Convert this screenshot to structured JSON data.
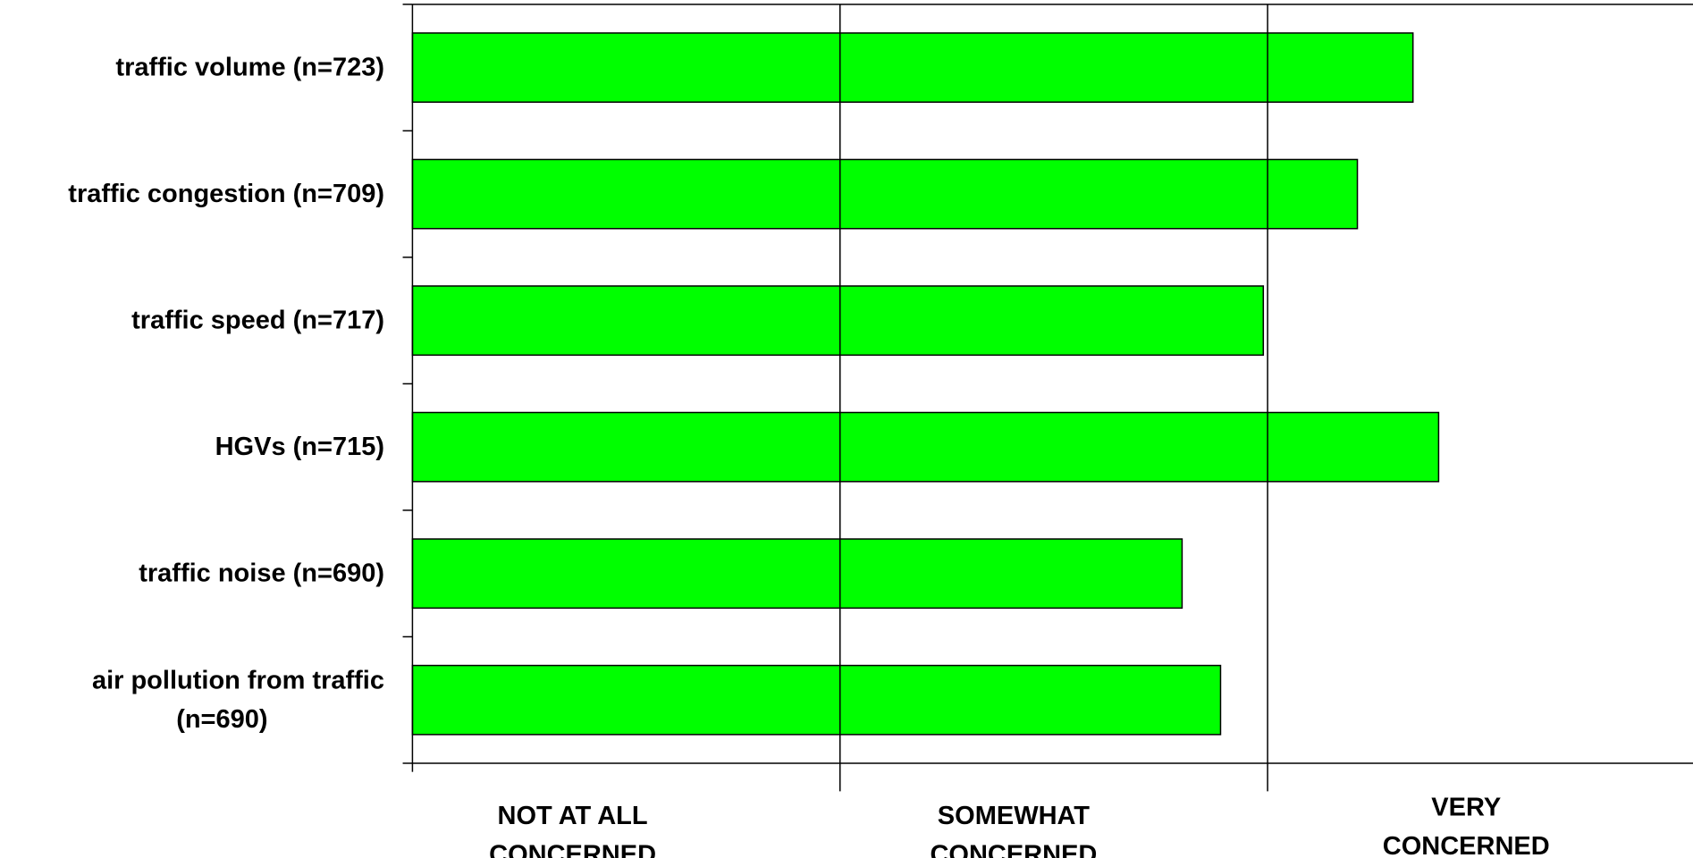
{
  "chart_data": {
    "type": "bar",
    "orientation": "horizontal",
    "categories": [
      "traffic volume (n=723)",
      "traffic congestion (n=709)",
      "traffic speed (n=717)",
      "HGVs (n=715)",
      "traffic noise (n=690)",
      "air pollution from traffic (n=690)"
    ],
    "category_lines": [
      [
        "traffic volume (n=723)"
      ],
      [
        "traffic congestion (n=709)"
      ],
      [
        "traffic speed (n=717)"
      ],
      [
        "HGVs (n=715)"
      ],
      [
        "traffic noise (n=690)"
      ],
      [
        "air pollution from traffic",
        "(n=690)"
      ]
    ],
    "values": [
      2.34,
      2.21,
      1.99,
      2.4,
      1.8,
      1.89
    ],
    "xlim": [
      0,
      4
    ],
    "x_tick_labels": [
      {
        "value": 0.5,
        "lines": [
          "NOT AT ALL",
          "CONCERNED"
        ]
      },
      {
        "value": 1.5,
        "lines": [
          "SOMEWHAT",
          "CONCERNED"
        ]
      },
      {
        "value": 2.5,
        "lines": [
          "VERY",
          "CONCERNED"
        ]
      }
    ],
    "gridlines_x": [
      1,
      2
    ],
    "bar_color": "#00ff00",
    "legend": false,
    "title": "",
    "xlabel": "",
    "ylabel": ""
  }
}
